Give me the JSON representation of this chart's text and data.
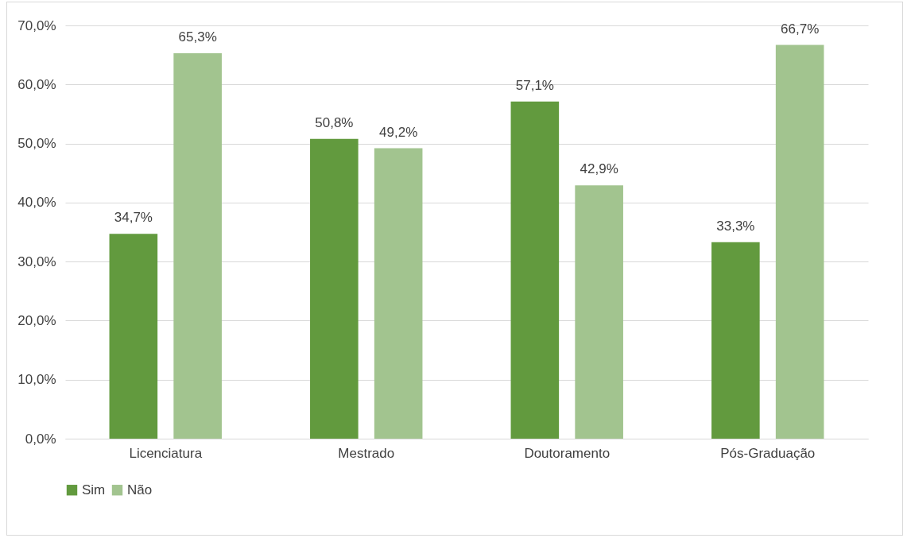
{
  "chart_data": {
    "type": "bar",
    "categories": [
      "Licenciatura",
      "Mestrado",
      "Doutoramento",
      "Pós-Graduação"
    ],
    "series": [
      {
        "name": "Sim",
        "color": "#629a3e",
        "values": [
          34.7,
          50.8,
          57.1,
          33.3
        ],
        "value_labels": [
          "34,7%",
          "50,8%",
          "57,1%",
          "33,3%"
        ]
      },
      {
        "name": "Não",
        "color": "#a2c48f",
        "values": [
          65.3,
          49.2,
          42.9,
          66.7
        ],
        "value_labels": [
          "65,3%",
          "49,2%",
          "42,9%",
          "66,7%"
        ]
      }
    ],
    "ylim": [
      0,
      70
    ],
    "yticks": [
      {
        "value": 0,
        "label": "0,0%"
      },
      {
        "value": 10,
        "label": "10,0%"
      },
      {
        "value": 20,
        "label": "20,0%"
      },
      {
        "value": 30,
        "label": "30,0%"
      },
      {
        "value": 40,
        "label": "40,0%"
      },
      {
        "value": 50,
        "label": "50,0%"
      },
      {
        "value": 60,
        "label": "60,0%"
      },
      {
        "value": 70,
        "label": "70,0%"
      }
    ],
    "grid": "y",
    "legend": "bottom"
  }
}
